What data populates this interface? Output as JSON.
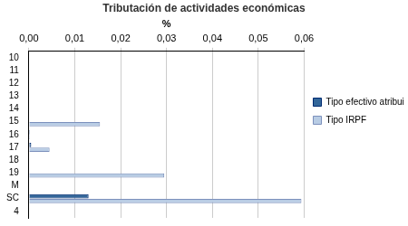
{
  "chart_data": {
    "type": "bar",
    "orientation": "horizontal",
    "title": "Tributación de actividades económicas",
    "x_label": "%",
    "categories": [
      "10",
      "11",
      "12",
      "13",
      "14",
      "15",
      "16",
      "17",
      "18",
      "19",
      "M",
      "SC",
      "4"
    ],
    "series": [
      {
        "name": "Tipo efectivo atribuible",
        "color": "#336699",
        "values": [
          0,
          0,
          0,
          0,
          0,
          0,
          0.0002,
          0.0005,
          0,
          0,
          0,
          0.013,
          0
        ]
      },
      {
        "name": "Tipo IRPF",
        "color": "#b8cce4",
        "values": [
          0,
          0,
          0,
          0,
          0,
          0.0155,
          0.0002,
          0.0045,
          0,
          0.0295,
          0,
          0.0594,
          0
        ]
      }
    ],
    "xlim": [
      0,
      0.06
    ],
    "xticks": [
      {
        "value": 0,
        "label": "0,00"
      },
      {
        "value": 0.01,
        "label": "0,01"
      },
      {
        "value": 0.02,
        "label": "0,02"
      },
      {
        "value": 0.03,
        "label": "0,03"
      },
      {
        "value": 0.04,
        "label": "0,04"
      },
      {
        "value": 0.05,
        "label": "0,05"
      },
      {
        "value": 0.06,
        "label": "0,06"
      }
    ],
    "grid": true,
    "legend": "right"
  }
}
